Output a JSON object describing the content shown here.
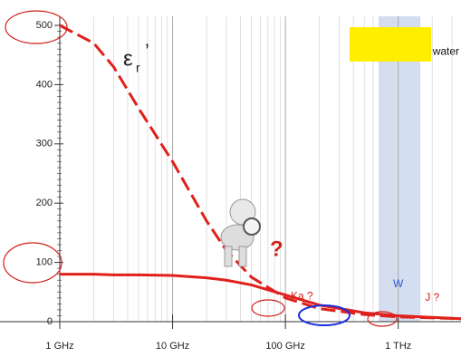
{
  "chart_data": {
    "type": "line",
    "x": [
      1,
      2,
      3,
      5,
      10,
      20,
      30,
      50,
      100,
      200,
      500,
      1000,
      3600
    ],
    "series": [
      {
        "color": "#e0201c",
        "dash": true,
        "values": [
          500,
          470,
          430,
          360,
          270,
          170,
          120,
          75,
          40,
          22,
          12,
          8,
          5
        ]
      },
      {
        "color": "#e0201c",
        "dash": false,
        "values": [
          80,
          80,
          79,
          79,
          78,
          74,
          70,
          62,
          45,
          28,
          15,
          10,
          5
        ]
      }
    ],
    "xlim": [
      1,
      3600
    ],
    "xlog": true,
    "xticks": [
      {
        "value": 1,
        "label": "1 GHz"
      },
      {
        "value": 10,
        "label": "10 GHz"
      },
      {
        "value": 100,
        "label": "100 GHz"
      },
      {
        "value": 1000,
        "label": "1 THz"
      }
    ],
    "ylim": [
      0,
      500
    ],
    "yticks": [
      0,
      100,
      200,
      300,
      400,
      500
    ],
    "grid": true,
    "minor_grid": true,
    "band": [
      670,
      1570
    ],
    "band_color": "#c9d6ee",
    "annotations": [
      {
        "text": "tap water",
        "x": 2200,
        "y": 455
      },
      {
        "text": "Ka ?",
        "x": 140,
        "y": 42
      },
      {
        "text": "W",
        "x": 1000,
        "y": 63
      },
      {
        "text": "J ?",
        "x": 2000,
        "y": 40
      }
    ],
    "symbol": "ε",
    "symbol_sub": "r",
    "symbol_prime": "’"
  }
}
